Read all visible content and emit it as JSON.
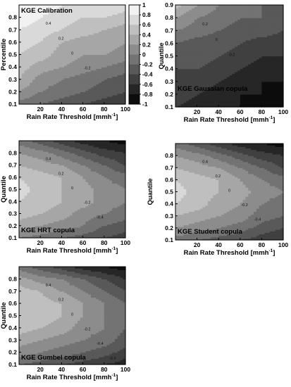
{
  "colorbar": {
    "ticks": [
      1,
      0.8,
      0.6,
      0.4,
      0.2,
      0,
      -0.2,
      -0.4,
      -0.6,
      -0.8,
      -1
    ],
    "range": [
      -1,
      1
    ],
    "colors": [
      "#000000",
      "#ffffff"
    ]
  },
  "chart_data": [
    {
      "type": "heatmap",
      "title": "KGE Calibration",
      "xlabel": "Rain Rate Threshold [mmh",
      "xlabel_sup": "-1",
      "xlabel_end": "]",
      "ylabel": "Percentile",
      "xlim": [
        0,
        100
      ],
      "ylim": [
        0.1,
        0.9
      ],
      "xticks": [
        20,
        40,
        60,
        80,
        100
      ],
      "yticks": [
        0.1,
        0.2,
        0.3,
        0.4,
        0.5,
        0.6,
        0.7,
        0.8
      ],
      "x": [
        0,
        20,
        40,
        60,
        80,
        100
      ],
      "y": [
        0.1,
        0.2,
        0.3,
        0.4,
        0.5,
        0.6,
        0.7,
        0.8,
        0.9
      ],
      "z": [
        [
          -0.1,
          -0.2,
          -0.3,
          -0.4,
          -0.5,
          -0.6
        ],
        [
          0.2,
          0.0,
          -0.1,
          -0.2,
          -0.3,
          -0.4
        ],
        [
          0.4,
          0.1,
          0.0,
          -0.1,
          -0.2,
          -0.3
        ],
        [
          0.5,
          0.3,
          0.2,
          0.1,
          0.0,
          -0.1
        ],
        [
          0.6,
          0.5,
          0.3,
          0.2,
          0.2,
          0.1
        ],
        [
          0.7,
          0.6,
          0.4,
          0.3,
          0.3,
          0.2
        ],
        [
          0.8,
          0.7,
          0.6,
          0.5,
          0.4,
          0.3
        ],
        [
          0.9,
          0.8,
          0.7,
          0.6,
          0.6,
          0.5
        ],
        [
          1.0,
          0.9,
          0.8,
          0.8,
          0.8,
          0.7
        ]
      ],
      "contour_labels": [
        "0.4",
        "0.2",
        "0",
        "-0.2"
      ]
    },
    {
      "type": "heatmap",
      "title": "KGE Gaussian copula",
      "xlabel": "Rain Rate Threshold [mmh",
      "xlabel_sup": "-1",
      "xlabel_end": "]",
      "ylabel": "Quantile",
      "xlim": [
        0,
        100
      ],
      "ylim": [
        0.1,
        0.9
      ],
      "xticks": [
        20,
        40,
        60,
        80,
        100
      ],
      "yticks": [
        0.1,
        0.2,
        0.3,
        0.4,
        0.5,
        0.6,
        0.7,
        0.8,
        0.9
      ],
      "x": [
        0,
        20,
        40,
        60,
        80,
        100
      ],
      "y": [
        0.1,
        0.2,
        0.3,
        0.4,
        0.5,
        0.6,
        0.7,
        0.8,
        0.9
      ],
      "z": [
        [
          -0.6,
          -0.7,
          -0.8,
          -0.8,
          -0.9,
          -0.9
        ],
        [
          -0.5,
          -0.6,
          -0.7,
          -0.8,
          -0.8,
          -0.9
        ],
        [
          -0.4,
          -0.5,
          -0.6,
          -0.7,
          -0.8,
          -0.8
        ],
        [
          -0.4,
          -0.4,
          -0.5,
          -0.6,
          -0.7,
          -0.7
        ],
        [
          -0.3,
          -0.3,
          -0.4,
          -0.5,
          -0.6,
          -0.6
        ],
        [
          -0.2,
          -0.3,
          -0.3,
          -0.4,
          -0.5,
          -0.5
        ],
        [
          0.0,
          -0.1,
          -0.2,
          -0.3,
          -0.3,
          -0.4
        ],
        [
          0.2,
          0.0,
          -0.1,
          -0.2,
          -0.2,
          -0.3
        ],
        [
          0.5,
          0.2,
          0.0,
          -0.1,
          -0.2,
          -0.3
        ]
      ],
      "contour_labels": [
        "0.2",
        "0",
        "-0.2"
      ]
    },
    {
      "type": "heatmap",
      "title": "KGE HRT copula",
      "xlabel": "Rain Rate Threshold [mmh",
      "xlabel_sup": "-1",
      "xlabel_end": "]",
      "ylabel": "Quantile",
      "xlim": [
        0,
        100
      ],
      "ylim": [
        0.1,
        0.9
      ],
      "xticks": [
        20,
        40,
        60,
        80,
        100
      ],
      "yticks": [
        0.1,
        0.2,
        0.3,
        0.4,
        0.5,
        0.6,
        0.7,
        0.8
      ],
      "x": [
        0,
        20,
        40,
        60,
        80,
        100
      ],
      "y": [
        0.1,
        0.2,
        0.3,
        0.4,
        0.5,
        0.6,
        0.7,
        0.8,
        0.9
      ],
      "z": [
        [
          0.0,
          -0.1,
          -0.2,
          -0.3,
          -0.4,
          -0.5
        ],
        [
          0.3,
          0.2,
          0.1,
          0.0,
          -0.2,
          -0.3
        ],
        [
          0.5,
          0.4,
          0.3,
          0.1,
          0.0,
          -0.1
        ],
        [
          0.6,
          0.5,
          0.4,
          0.3,
          0.1,
          0.0
        ],
        [
          0.7,
          0.5,
          0.4,
          0.3,
          0.1,
          0.0
        ],
        [
          0.6,
          0.5,
          0.4,
          0.2,
          0.0,
          -0.1
        ],
        [
          0.4,
          0.3,
          0.2,
          0.0,
          -0.2,
          -0.4
        ],
        [
          0.2,
          0.1,
          -0.1,
          -0.3,
          -0.5,
          -0.6
        ],
        [
          -0.1,
          -0.3,
          -0.5,
          -0.7,
          -0.8,
          -0.9
        ]
      ],
      "contour_labels": [
        "0.4",
        "0.2",
        "0",
        "-0.2",
        "-0.4"
      ]
    },
    {
      "type": "heatmap",
      "title": "KGE Student copula",
      "xlabel": "Rain Rate Threshold [mmh",
      "xlabel_sup": "-1",
      "xlabel_end": "]",
      "ylabel": "Quantile",
      "xlim": [
        0,
        100
      ],
      "ylim": [
        0.1,
        0.9
      ],
      "xticks": [
        20,
        40,
        60,
        80,
        100
      ],
      "yticks": [
        0.1,
        0.2,
        0.3,
        0.4,
        0.5,
        0.6,
        0.7,
        0.8
      ],
      "x": [
        0,
        20,
        40,
        60,
        80,
        100
      ],
      "y": [
        0.1,
        0.2,
        0.3,
        0.4,
        0.5,
        0.6,
        0.7,
        0.8,
        0.9
      ],
      "z": [
        [
          -0.1,
          -0.2,
          -0.3,
          -0.4,
          -0.5,
          -0.6
        ],
        [
          0.2,
          0.1,
          0.0,
          -0.1,
          -0.3,
          -0.4
        ],
        [
          0.4,
          0.3,
          0.2,
          0.1,
          -0.1,
          -0.2
        ],
        [
          0.6,
          0.5,
          0.3,
          0.2,
          0.0,
          -0.1
        ],
        [
          0.7,
          0.5,
          0.4,
          0.3,
          0.1,
          0.0
        ],
        [
          0.6,
          0.5,
          0.4,
          0.2,
          0.0,
          -0.1
        ],
        [
          0.4,
          0.3,
          0.2,
          0.0,
          -0.2,
          -0.4
        ],
        [
          0.2,
          0.1,
          -0.1,
          -0.3,
          -0.5,
          -0.6
        ],
        [
          -0.1,
          -0.3,
          -0.5,
          -0.7,
          -0.8,
          -0.9
        ]
      ],
      "contour_labels": [
        "0.4",
        "0.2",
        "0",
        "-0.2",
        "-0.4"
      ]
    },
    {
      "type": "heatmap",
      "title": "KGE Gumbel copula",
      "xlabel": "Rain Rate Threshold [mmh",
      "xlabel_sup": "-1",
      "xlabel_end": "]",
      "ylabel": "Quantile",
      "xlim": [
        0,
        100
      ],
      "ylim": [
        0.1,
        0.9
      ],
      "xticks": [
        20,
        40,
        60,
        80,
        100
      ],
      "yticks": [
        0.1,
        0.2,
        0.3,
        0.4,
        0.5,
        0.6,
        0.7,
        0.8
      ],
      "x": [
        0,
        20,
        40,
        60,
        80,
        100
      ],
      "y": [
        0.1,
        0.2,
        0.3,
        0.4,
        0.5,
        0.6,
        0.7,
        0.8,
        0.9
      ],
      "z": [
        [
          -0.2,
          -0.3,
          -0.4,
          -0.5,
          -0.6,
          -0.7
        ],
        [
          0.1,
          0.0,
          -0.1,
          -0.2,
          -0.3,
          -0.5
        ],
        [
          0.3,
          0.2,
          0.1,
          0.0,
          -0.1,
          -0.3
        ],
        [
          0.5,
          0.4,
          0.3,
          0.1,
          0.0,
          -0.2
        ],
        [
          0.6,
          0.5,
          0.4,
          0.2,
          0.0,
          -0.1
        ],
        [
          0.6,
          0.5,
          0.4,
          0.2,
          0.0,
          -0.2
        ],
        [
          0.5,
          0.4,
          0.2,
          0.0,
          -0.2,
          -0.4
        ],
        [
          0.3,
          0.1,
          0.0,
          -0.2,
          -0.4,
          -0.6
        ],
        [
          -0.1,
          -0.3,
          -0.5,
          -0.7,
          -0.8,
          -0.9
        ]
      ],
      "contour_labels": [
        "0.4",
        "0.2",
        "0",
        "-0.2",
        "-0.4",
        "-0.6"
      ]
    }
  ]
}
